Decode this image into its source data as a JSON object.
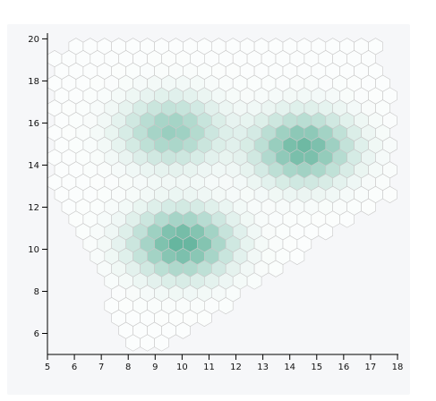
{
  "chart_data": {
    "type": "heatmap",
    "variant": "hexbin",
    "title": "",
    "xlabel": "",
    "ylabel": "",
    "xlim": [
      5,
      18
    ],
    "ylim": [
      5,
      20.4
    ],
    "x_ticks": [
      "5",
      "6",
      "7",
      "8",
      "9",
      "10",
      "11",
      "12",
      "13",
      "14",
      "15",
      "16",
      "17",
      "18"
    ],
    "y_ticks": [
      "6",
      "8",
      "10",
      "12",
      "14",
      "16",
      "18",
      "20"
    ],
    "color_low": "#ffffff",
    "color_high": "#4ca98e",
    "hex_stroke": "#c8c8c8",
    "grid": false,
    "density_clusters": [
      {
        "x": 9.6,
        "y": 15.6,
        "peak": 0.55
      },
      {
        "x": 14.5,
        "y": 14.8,
        "peak": 0.8
      },
      {
        "x": 10.0,
        "y": 10.3,
        "peak": 0.85
      }
    ]
  }
}
